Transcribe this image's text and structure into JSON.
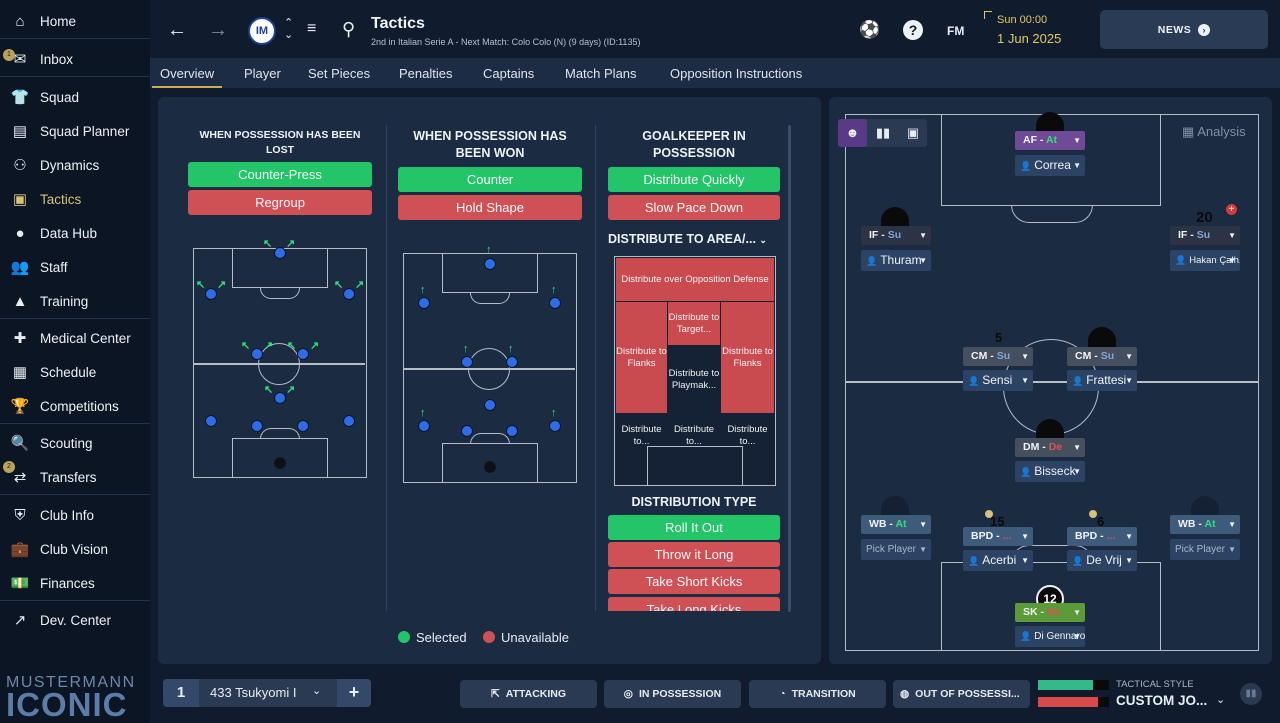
{
  "sidebar": {
    "items": [
      {
        "label": "Home",
        "icon": "home-icon"
      },
      {
        "label": "Inbox",
        "icon": "inbox-icon",
        "badge": "1"
      },
      {
        "label": "Squad",
        "icon": "shirt-icon"
      },
      {
        "label": "Squad Planner",
        "icon": "clipboard-icon"
      },
      {
        "label": "Dynamics",
        "icon": "dynamics-icon"
      },
      {
        "label": "Tactics",
        "icon": "tactics-icon",
        "active": true
      },
      {
        "label": "Data Hub",
        "icon": "data-hub-icon"
      },
      {
        "label": "Staff",
        "icon": "staff-icon"
      },
      {
        "label": "Training",
        "icon": "training-icon"
      },
      {
        "label": "Medical Center",
        "icon": "medical-icon"
      },
      {
        "label": "Schedule",
        "icon": "calendar-icon"
      },
      {
        "label": "Competitions",
        "icon": "trophy-icon"
      },
      {
        "label": "Scouting",
        "icon": "scouting-icon"
      },
      {
        "label": "Transfers",
        "icon": "transfers-icon",
        "badge": "2"
      },
      {
        "label": "Club Info",
        "icon": "shield-icon"
      },
      {
        "label": "Club Vision",
        "icon": "briefcase-icon"
      },
      {
        "label": "Finances",
        "icon": "money-icon"
      },
      {
        "label": "Dev. Center",
        "icon": "dev-center-icon"
      }
    ],
    "brand_top": "MUSTERMANN",
    "brand_bottom": "ICONIC"
  },
  "header": {
    "title": "Tactics",
    "subtitle": "2nd in Italian Serie A - Next Match: Colo Colo (N) (9 days) (ID:1135)",
    "fm_label": "FM",
    "time": "Sun 00:00",
    "date": "1 Jun 2025",
    "news_label": "NEWS"
  },
  "tabs": [
    "Overview",
    "Player",
    "Set Pieces",
    "Penalties",
    "Captains",
    "Match Plans",
    "Opposition Instructions"
  ],
  "possession_lost": {
    "title": "WHEN POSSESSION HAS BEEN LOST",
    "options": [
      {
        "label": "Counter-Press",
        "state": "selected"
      },
      {
        "label": "Regroup",
        "state": "unavailable"
      }
    ]
  },
  "possession_won": {
    "title": "WHEN POSSESSION HAS BEEN WON",
    "options": [
      {
        "label": "Counter",
        "state": "selected"
      },
      {
        "label": "Hold Shape",
        "state": "unavailable"
      }
    ]
  },
  "goalkeeper": {
    "title": "GOALKEEPER IN POSSESSION",
    "options": [
      {
        "label": "Distribute Quickly",
        "state": "selected"
      },
      {
        "label": "Slow Pace Down",
        "state": "unavailable"
      }
    ],
    "distribute_area_label": "DISTRIBUTE TO AREA/...",
    "zones": {
      "top": "Distribute over Opposition Defense",
      "target": "Distribute to Target...",
      "flank_left": "Distribute to Flanks",
      "flank_right": "Distribute to Flanks",
      "playmaker": "Distribute to Playmak...",
      "bottom_left": "Distribute to...",
      "bottom_mid": "Distribute to...",
      "bottom_right": "Distribute to..."
    },
    "distribution_type_title": "DISTRIBUTION TYPE",
    "distribution_types": [
      {
        "label": "Roll It Out",
        "state": "selected"
      },
      {
        "label": "Throw it Long",
        "state": "unavailable"
      },
      {
        "label": "Take Short Kicks",
        "state": "unavailable"
      },
      {
        "label": "Take Long Kicks",
        "state": "unavailable"
      }
    ]
  },
  "legend": {
    "selected": "Selected",
    "unavailable": "Unavailable"
  },
  "analysis_label": "Analysis",
  "formation": [
    {
      "role": "AF",
      "duty": "At",
      "name": "Correa",
      "role_color": "#6f4a96"
    },
    {
      "role": "IF",
      "duty": "Su",
      "name": "Thuram",
      "role_color": "#2b3345"
    },
    {
      "role": "IF",
      "duty": "Su",
      "name": "Hakan Çalh...",
      "role_color": "#2b3345",
      "number": "20"
    },
    {
      "role": "CM",
      "duty": "Su",
      "name": "Sensi",
      "role_color": "#454f5e",
      "number": "5"
    },
    {
      "role": "CM",
      "duty": "Su",
      "name": "Frattesi",
      "role_color": "#454f5e"
    },
    {
      "role": "DM",
      "duty": "De",
      "name": "Bisseck",
      "role_color": "#454f5e"
    },
    {
      "role": "WB",
      "duty": "At",
      "name": "Pick Player",
      "role_color": "#3e5b7c"
    },
    {
      "role": "BPD",
      "duty": "...",
      "name": "Acerbi",
      "role_color": "#3e5b7c",
      "number": "15"
    },
    {
      "role": "BPD",
      "duty": "...",
      "name": "De Vrij",
      "role_color": "#3e5b7c",
      "number": "6"
    },
    {
      "role": "WB",
      "duty": "At",
      "name": "Pick Player",
      "role_color": "#3e5b7c"
    },
    {
      "role": "SK",
      "duty": "De",
      "name": "Di Gennaro",
      "role_color": "#5c9a3a",
      "number": "12"
    }
  ],
  "bottom": {
    "slot": "1",
    "tactic_name": "433 Tsukyomi I",
    "add_label": "+",
    "phases": [
      "ATTACKING",
      "IN POSSESSION",
      "TRANSITION",
      "OUT OF POSSESSI..."
    ],
    "tactical_style_label": "TACTICAL STYLE",
    "tactical_style_value": "CUSTOM JO...",
    "style_bars": {
      "positive": 0.78,
      "negative": 0.85
    }
  },
  "colors": {
    "selected": "#24c569",
    "unavailable": "#cf5156",
    "accent": "#c9ae55",
    "attack": "#2fe07a",
    "defend": "#e05050"
  }
}
